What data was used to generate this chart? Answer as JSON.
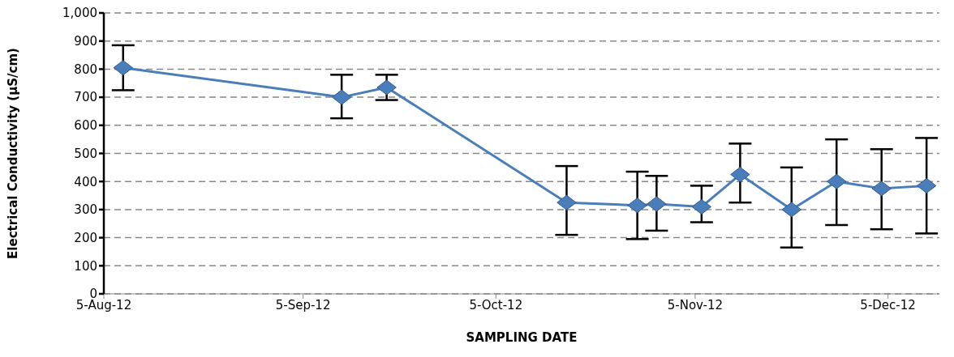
{
  "chart_data": {
    "type": "line",
    "xlabel": "SAMPLING DATE",
    "ylabel": "Electrical Conductivity (µS/cm)",
    "x": [
      "2012-08-08",
      "2012-09-11",
      "2012-09-18",
      "2012-10-16",
      "2012-10-27",
      "2012-10-30",
      "2012-11-06",
      "2012-11-12",
      "2012-11-20",
      "2012-11-27",
      "2012-12-04",
      "2012-12-11"
    ],
    "series": [
      {
        "color": "#4a7ebb",
        "values": [
          805,
          700,
          735,
          325,
          315,
          320,
          310,
          425,
          300,
          400,
          375,
          385
        ],
        "errors": [
          [
            725,
            885
          ],
          [
            625,
            780
          ],
          [
            690,
            780
          ],
          [
            210,
            455
          ],
          [
            195,
            435
          ],
          [
            225,
            420
          ],
          [
            255,
            385
          ],
          [
            325,
            535
          ],
          [
            165,
            450
          ],
          [
            245,
            550
          ],
          [
            230,
            515
          ],
          [
            215,
            555
          ]
        ]
      }
    ],
    "xlim": [
      "2012-08-05",
      "2012-12-13"
    ],
    "xticks": [
      {
        "value": "2012-08-05",
        "label": "5-Aug-12"
      },
      {
        "value": "2012-09-05",
        "label": "5-Sep-12"
      },
      {
        "value": "2012-10-05",
        "label": "5-Oct-12"
      },
      {
        "value": "2012-11-05",
        "label": "5-Nov-12"
      },
      {
        "value": "2012-12-05",
        "label": "5-Dec-12"
      }
    ],
    "ylim": [
      0,
      1000
    ],
    "yticks": [
      0,
      100,
      200,
      300,
      400,
      500,
      600,
      700,
      800,
      900,
      {
        "value": 1000,
        "label": "1,000"
      }
    ],
    "grid": "y",
    "marker": "diamond",
    "line_style": "solid"
  }
}
